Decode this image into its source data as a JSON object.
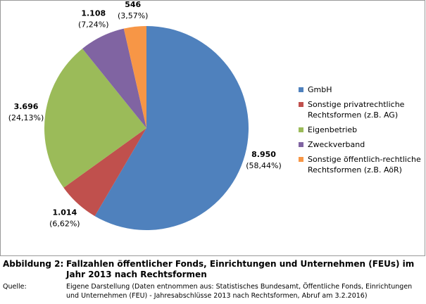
{
  "chart_data": {
    "type": "pie",
    "categories": [
      "GmbH",
      "Sonstige privatrechtliche Rechtsformen (z.B. AG)",
      "Eigenbetrieb",
      "Zweckverband",
      "Sonstige öffentlich-rechtliche Rechtsformen (z.B. AöR)"
    ],
    "values": [
      8950,
      1014,
      3696,
      1108,
      546
    ],
    "value_labels": [
      "8.950",
      "1.014",
      "3.696",
      "1.108",
      "546"
    ],
    "percent_labels": [
      "(58,44%)",
      "(6,62%)",
      "(24,13%)",
      "(7,24%)",
      "(3,57%)"
    ],
    "colors": [
      "#4f81bd",
      "#c0504d",
      "#9bbb59",
      "#8064a2",
      "#f79646"
    ],
    "legend": "right"
  },
  "caption": {
    "figure_label": "Abbildung 2:",
    "title": "Fallzahlen öffentlicher Fonds, Einrichtungen und Unternehmen (FEUs) im Jahr 2013 nach Rechtsformen",
    "source_label": "Quelle:",
    "source": "Eigene Darstellung (Daten entnommen aus: Statistisches Bundesamt, Öffentliche Fonds, Einrichtungen und Unternehmen (FEU) - Jahresabschlüsse 2013 nach Rechtsformen, Abruf am 3.2.2016)"
  }
}
